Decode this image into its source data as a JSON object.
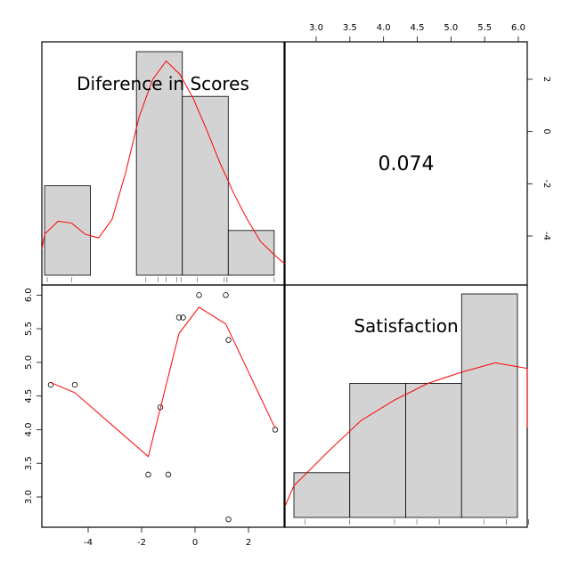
{
  "chart_data": {
    "type": "scatter",
    "kind": "pairs-panel",
    "variables": [
      "Diference in Scores",
      "Satisfaction"
    ],
    "correlation": "0.074",
    "diff_axis": {
      "ticks": [
        "-4",
        "-2",
        "0",
        "2"
      ],
      "range": [
        -5.6,
        3.4
      ]
    },
    "sat_axis": {
      "ticks": [
        "3.0",
        "3.5",
        "4.0",
        "4.5",
        "5.0",
        "5.5",
        "6.0"
      ],
      "range": [
        2.55,
        6.15
      ]
    },
    "points": [
      {
        "x": -5.4,
        "y": 4.667
      },
      {
        "x": -4.5,
        "y": 4.667
      },
      {
        "x": -1.75,
        "y": 3.333
      },
      {
        "x": -1.3,
        "y": 4.333
      },
      {
        "x": -1.0,
        "y": 3.333
      },
      {
        "x": -0.6,
        "y": 5.667
      },
      {
        "x": -0.45,
        "y": 5.667
      },
      {
        "x": 0.15,
        "y": 6.0
      },
      {
        "x": 1.15,
        "y": 6.0
      },
      {
        "x": 1.25,
        "y": 5.333
      },
      {
        "x": 1.25,
        "y": 2.667
      },
      {
        "x": 3.0,
        "y": 4.0
      }
    ],
    "loess": [
      {
        "x": -5.4,
        "y": 4.7
      },
      {
        "x": -4.5,
        "y": 4.55
      },
      {
        "x": -1.75,
        "y": 3.6
      },
      {
        "x": -0.6,
        "y": 5.43
      },
      {
        "x": 0.15,
        "y": 5.82
      },
      {
        "x": 1.15,
        "y": 5.57
      },
      {
        "x": 3.0,
        "y": 4.02
      }
    ],
    "diff_hist": {
      "bins": [
        [
          -5.5,
          -3.8
        ],
        [
          -2.1,
          -0.4
        ],
        [
          -0.4,
          1.3
        ],
        [
          1.3,
          3.0
        ]
      ],
      "heights": [
        0.4,
        1.0,
        0.8,
        0.2
      ],
      "density": [
        {
          "x": -6.0,
          "y": 0.14
        },
        {
          "x": -5.5,
          "y": 0.22
        },
        {
          "x": -5.0,
          "y": 0.29
        },
        {
          "x": -4.5,
          "y": 0.28
        },
        {
          "x": -4.0,
          "y": 0.22
        },
        {
          "x": -3.5,
          "y": 0.2
        },
        {
          "x": -3.0,
          "y": 0.3
        },
        {
          "x": -2.5,
          "y": 0.55
        },
        {
          "x": -2.0,
          "y": 0.85
        },
        {
          "x": -1.5,
          "y": 1.05
        },
        {
          "x": -1.0,
          "y": 1.15
        },
        {
          "x": -0.5,
          "y": 1.08
        },
        {
          "x": 0.0,
          "y": 0.95
        },
        {
          "x": 0.5,
          "y": 0.78
        },
        {
          "x": 1.0,
          "y": 0.6
        },
        {
          "x": 1.5,
          "y": 0.44
        },
        {
          "x": 2.0,
          "y": 0.3
        },
        {
          "x": 2.5,
          "y": 0.18
        },
        {
          "x": 3.0,
          "y": 0.11
        },
        {
          "x": 3.5,
          "y": 0.06
        }
      ],
      "rug": [
        -5.4,
        -4.5,
        -1.75,
        -1.3,
        -1.0,
        -0.6,
        -0.45,
        0.15,
        1.15,
        1.25,
        1.25,
        3.0
      ]
    },
    "sat_hist": {
      "bins": [
        [
          2.5,
          3.333
        ],
        [
          3.333,
          4.167
        ],
        [
          4.167,
          5.0
        ],
        [
          5.0,
          5.833
        ]
      ],
      "heights": [
        0.2,
        0.6,
        0.6,
        1.0
      ],
      "density": [
        {
          "x": 2.05,
          "y": 0.06
        },
        {
          "x": 2.5,
          "y": 0.17
        },
        {
          "x": 3.0,
          "y": 0.35
        },
        {
          "x": 3.5,
          "y": 0.52
        },
        {
          "x": 4.0,
          "y": 0.63
        },
        {
          "x": 4.5,
          "y": 0.72
        },
        {
          "x": 5.0,
          "y": 0.78
        },
        {
          "x": 5.5,
          "y": 0.83
        },
        {
          "x": 6.0,
          "y": 0.8
        },
        {
          "x": 6.3,
          "y": 0.68
        },
        {
          "x": 6.6,
          "y": 0.48
        }
      ],
      "rug": [
        2.667,
        3.333,
        3.333,
        4.0,
        4.333,
        4.667,
        4.667,
        5.333,
        5.667,
        5.667,
        6.0,
        6.0
      ]
    },
    "colors": {
      "bar_fill": "#d3d3d3",
      "smooth": "#ff0000",
      "frame": "#000000"
    }
  }
}
